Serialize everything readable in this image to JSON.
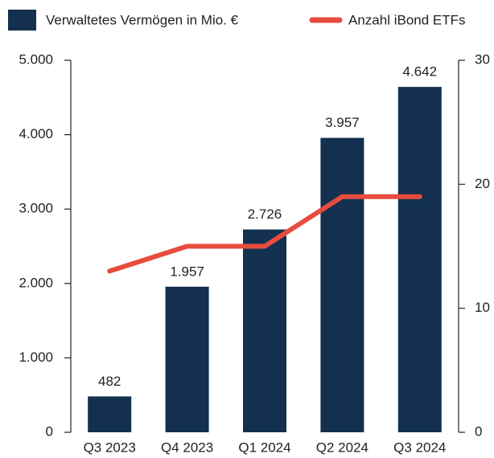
{
  "chart_data": {
    "type": "bar",
    "categories": [
      "Q3 2023",
      "Q4 2023",
      "Q1 2024",
      "Q2 2024",
      "Q3 2024"
    ],
    "series": [
      {
        "name": "Verwaltetes Vermögen in Mio. €",
        "color": "#14304f",
        "values": [
          482,
          1957,
          2726,
          3957,
          4642
        ],
        "value_labels": [
          "482",
          "1.957",
          "2.726",
          "3.957",
          "4.642"
        ]
      },
      {
        "name": "Anzahl iBond ETFs",
        "type": "line",
        "axis": "y2",
        "color": "#e84c3d",
        "values": [
          13,
          15,
          15,
          19,
          19
        ]
      }
    ],
    "ylim": [
      0,
      5000
    ],
    "yticks": [
      0,
      {
        "value": 1000,
        "label": "1.000"
      },
      {
        "value": 2000,
        "label": "2.000"
      },
      {
        "value": 3000,
        "label": "3.000"
      },
      {
        "value": 4000,
        "label": "4.000"
      },
      {
        "value": 5000,
        "label": "5.000"
      }
    ],
    "y2lim": [
      0,
      30
    ],
    "y2ticks": [
      0,
      10,
      20,
      30
    ],
    "grid": false
  }
}
